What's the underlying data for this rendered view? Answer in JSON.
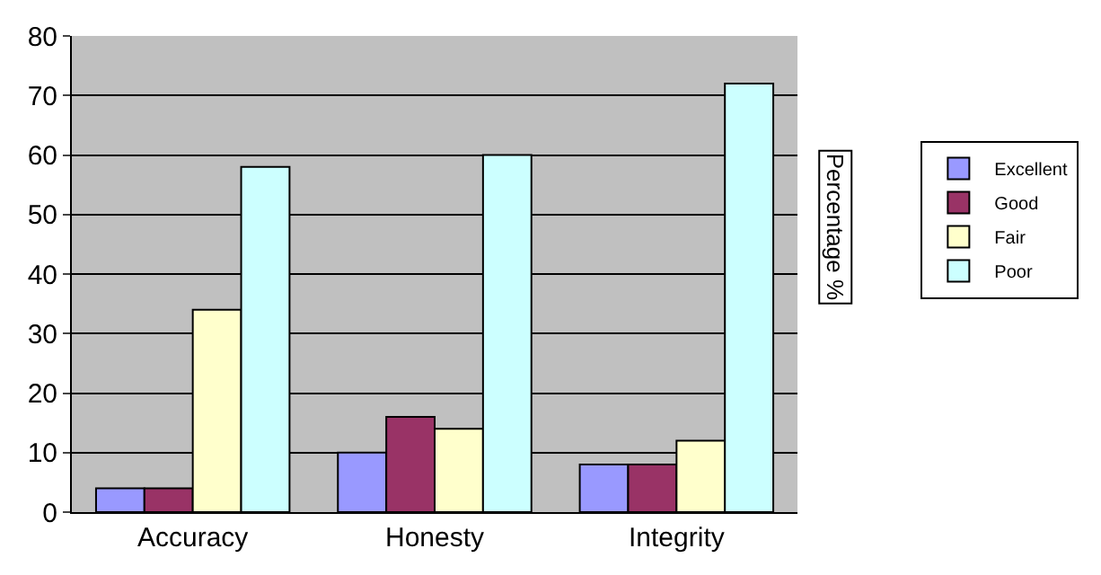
{
  "chart_data": {
    "type": "bar",
    "categories": [
      "Accuracy",
      "Honesty",
      "Integrity"
    ],
    "series": [
      {
        "name": "Excellent",
        "color": "#9999ff",
        "values": [
          4,
          10,
          8
        ]
      },
      {
        "name": "Good",
        "color": "#993366",
        "values": [
          4,
          16,
          8
        ]
      },
      {
        "name": "Fair",
        "color": "#ffffcc",
        "values": [
          34,
          14,
          12
        ]
      },
      {
        "name": "Poor",
        "color": "#ccffff",
        "values": [
          58,
          60,
          72
        ]
      }
    ],
    "ylabel": "Percentage %",
    "ylim": [
      0,
      80
    ],
    "yticks": [
      0,
      10,
      20,
      30,
      40,
      50,
      60,
      70,
      80
    ],
    "grid": "y",
    "legend": "right"
  }
}
